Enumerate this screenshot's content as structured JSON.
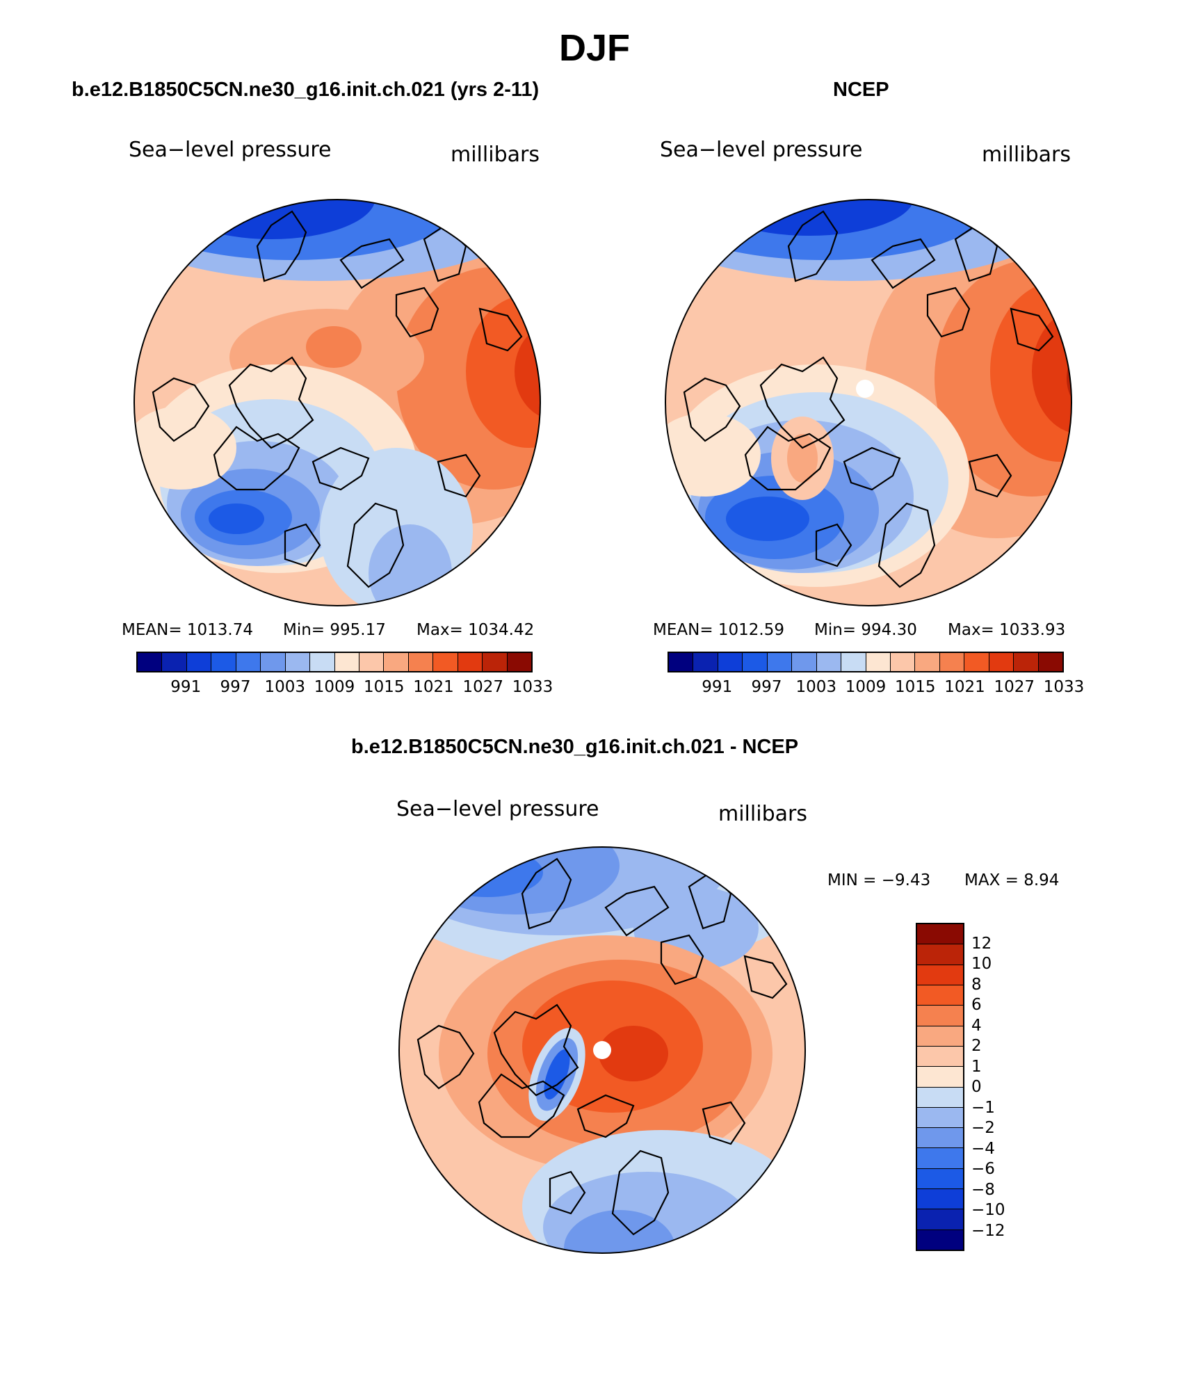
{
  "title": "DJF",
  "panels": [
    {
      "id": "model",
      "title": "b.e12.B1850C5CN.ne30_g16.init.ch.021 (yrs 2-11)",
      "variable": "Sea−level pressure",
      "units": "millibars",
      "stats": {
        "mean": "MEAN= 1013.74",
        "min": "Min= 995.17",
        "max": "Max= 1034.42"
      }
    },
    {
      "id": "ncep",
      "title": "NCEP",
      "variable": "Sea−level pressure",
      "units": "millibars",
      "stats": {
        "mean": "MEAN= 1012.59",
        "min": "Min= 994.30",
        "max": "Max= 1033.93"
      }
    },
    {
      "id": "diff",
      "title": "b.e12.B1850C5CN.ne30_g16.init.ch.021 - NCEP",
      "variable": "Sea−level pressure",
      "units": "millibars",
      "stats": {
        "min": "MIN =   −9.43",
        "max": "MAX =    8.94"
      }
    }
  ],
  "abs_colorbar": {
    "colors": [
      "#00007f",
      "#0a22b0",
      "#0e3ed8",
      "#1c5ae6",
      "#3e78ec",
      "#6f98ec",
      "#9bb8f0",
      "#c8dcf4",
      "#fde6d2",
      "#fcc7aa",
      "#f9a880",
      "#f5814f",
      "#f25a24",
      "#e23a10",
      "#bb2408",
      "#8a0a02"
    ],
    "labels": [
      "991",
      "997",
      "1003",
      "1009",
      "1015",
      "1021",
      "1027",
      "1033"
    ]
  },
  "diff_colorbar": {
    "colors": [
      "#8a0a02",
      "#bb2408",
      "#e23a10",
      "#f25a24",
      "#f5814f",
      "#f9a880",
      "#fcc7aa",
      "#fde6d2",
      "#c8dcf4",
      "#9bb8f0",
      "#6f98ec",
      "#3e78ec",
      "#1c5ae6",
      "#0e3ed8",
      "#0a22b0",
      "#00007f"
    ],
    "labels": [
      "12",
      "10",
      "8",
      "6",
      "4",
      "2",
      "1",
      "0",
      "−1",
      "−2",
      "−4",
      "−6",
      "−8",
      "−10",
      "−12"
    ]
  },
  "colors": {
    "c_low2": "#0e3ed8",
    "c_low1": "#3e78ec",
    "c_low0": "#9bb8f0",
    "c_neutral": "#fde6d2",
    "c_high1": "#f9a880",
    "c_high2": "#f25a24",
    "c_high3": "#bb2408",
    "coast": "#000000"
  }
}
